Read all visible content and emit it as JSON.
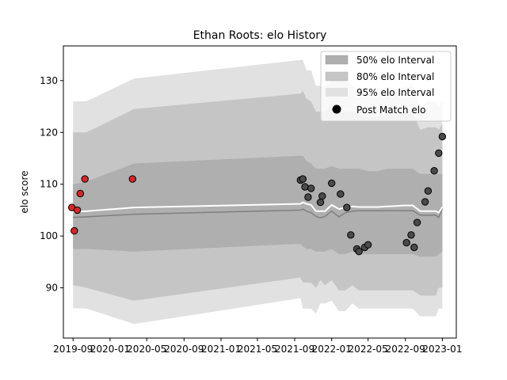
{
  "chart_data": {
    "type": "area",
    "title": "Ethan Roots: elo History",
    "xlabel": "",
    "ylabel": "elo score",
    "x_date_range": [
      "2019-07-31",
      "2023-02-16"
    ],
    "ylim": [
      80.3,
      136.7
    ],
    "grid": false,
    "legend_position": "top-right",
    "x_ticks": [
      "2019-09",
      "2020-01",
      "2020-05",
      "2020-09",
      "2021-01",
      "2021-05",
      "2021-09",
      "2022-01",
      "2022-05",
      "2022-09",
      "2023-01"
    ],
    "x_tick_dates": [
      "2019-09-01",
      "2020-01-01",
      "2020-05-01",
      "2020-09-01",
      "2021-01-01",
      "2021-05-01",
      "2021-09-01",
      "2022-01-01",
      "2022-05-01",
      "2022-09-01",
      "2023-01-01"
    ],
    "y_ticks": [
      90,
      100,
      110,
      120,
      130
    ],
    "legend": [
      {
        "label": "50% elo Interval",
        "color": "#afafaf",
        "kind": "patch"
      },
      {
        "label": "80% elo Interval",
        "color": "#c5c5c5",
        "kind": "patch"
      },
      {
        "label": "95% elo Interval",
        "color": "#e1e1e1",
        "kind": "patch"
      },
      {
        "label": "Post Match elo",
        "color": "#000000",
        "kind": "marker"
      }
    ],
    "x": [
      "2019-09-01",
      "2019-10-15",
      "2020-03-20",
      "2021-09-20",
      "2021-09-28",
      "2021-10-10",
      "2021-10-25",
      "2021-11-10",
      "2021-11-25",
      "2021-12-10",
      "2022-01-01",
      "2022-01-25",
      "2022-02-15",
      "2022-03-10",
      "2022-04-01",
      "2022-05-01",
      "2022-06-01",
      "2022-07-01",
      "2022-08-01",
      "2022-09-01",
      "2022-09-25",
      "2022-10-20",
      "2022-11-15",
      "2022-12-10",
      "2022-12-20",
      "2023-01-01"
    ],
    "series": [
      {
        "name": "95% elo Interval",
        "lower": [
          86.1,
          86.0,
          83.0,
          88.0,
          86.0,
          86.0,
          86.0,
          85.0,
          87.0,
          87.0,
          87.5,
          85.5,
          85.5,
          87.0,
          86.0,
          86.0,
          86.0,
          86.0,
          86.0,
          86.0,
          86.0,
          84.5,
          84.5,
          84.5,
          86.0,
          86.0
        ],
        "upper": [
          126.0,
          126.0,
          130.4,
          134.0,
          134.0,
          132.0,
          132.0,
          129.0,
          129.0,
          129.0,
          130.0,
          130.0,
          130.0,
          129.0,
          128.0,
          127.0,
          127.5,
          128.0,
          128.3,
          128.7,
          129.0,
          125.0,
          126.0,
          126.0,
          125.0,
          126.0
        ]
      },
      {
        "name": "80% elo Interval",
        "lower": [
          90.5,
          90.0,
          87.5,
          92.0,
          91.0,
          91.0,
          91.0,
          90.0,
          91.5,
          90.5,
          91.5,
          89.5,
          89.5,
          90.5,
          89.5,
          89.5,
          89.5,
          89.5,
          89.5,
          89.5,
          89.5,
          88.5,
          88.5,
          88.5,
          90.0,
          90.0
        ],
        "upper": [
          120.0,
          120.0,
          124.5,
          127.5,
          128.0,
          126.5,
          126.0,
          124.0,
          124.0,
          124.0,
          125.0,
          124.0,
          124.0,
          124.0,
          123.5,
          123.0,
          123.0,
          123.5,
          123.5,
          123.7,
          124.0,
          120.5,
          121.0,
          121.0,
          120.5,
          121.5
        ]
      },
      {
        "name": "50% elo Interval",
        "lower": [
          97.5,
          97.5,
          97.0,
          98.5,
          98.0,
          97.5,
          97.5,
          97.0,
          97.0,
          97.0,
          97.5,
          96.5,
          96.5,
          97.0,
          96.5,
          96.5,
          96.5,
          96.5,
          96.5,
          96.5,
          96.5,
          96.0,
          96.0,
          96.0,
          96.5,
          97.0
        ],
        "upper": [
          110.0,
          110.5,
          114.0,
          115.5,
          115.5,
          114.5,
          114.0,
          113.0,
          113.0,
          113.0,
          113.5,
          113.0,
          113.0,
          113.0,
          113.0,
          112.5,
          112.5,
          113.0,
          113.0,
          113.0,
          113.0,
          112.0,
          112.0,
          112.0,
          112.0,
          112.0
        ]
      },
      {
        "name": "",
        "values": [
          103.6,
          103.7,
          104.2,
          105.0,
          105.2,
          104.8,
          104.5,
          103.8,
          103.5,
          103.8,
          104.8,
          103.7,
          104.5,
          104.8,
          104.9,
          104.9,
          104.9,
          104.9,
          104.9,
          104.9,
          104.9,
          104.0,
          104.0,
          104.0,
          103.6,
          105.3
        ]
      },
      {
        "name": "",
        "values": [
          104.7,
          104.8,
          105.5,
          106.2,
          106.5,
          106.2,
          106.0,
          104.8,
          104.8,
          104.8,
          106.0,
          105.2,
          105.5,
          105.7,
          105.6,
          105.6,
          105.6,
          105.7,
          105.8,
          105.9,
          105.9,
          104.8,
          104.8,
          104.8,
          104.5,
          105.6
        ]
      }
    ],
    "points": [
      {
        "x": "2019-08-28",
        "y": 105.5,
        "color": "#d62728"
      },
      {
        "x": "2019-09-05",
        "y": 101.0,
        "color": "#d62728"
      },
      {
        "x": "2019-09-15",
        "y": 105.0,
        "color": "#d62728"
      },
      {
        "x": "2019-09-25",
        "y": 108.2,
        "color": "#d62728"
      },
      {
        "x": "2019-10-10",
        "y": 111.0,
        "color": "#d62728"
      },
      {
        "x": "2020-03-15",
        "y": 111.0,
        "color": "#d62728"
      },
      {
        "x": "2021-09-20",
        "y": 110.8,
        "color": "#4a4a4a"
      },
      {
        "x": "2021-09-28",
        "y": 111.0,
        "color": "#4a4a4a"
      },
      {
        "x": "2021-10-05",
        "y": 109.5,
        "color": "#4a4a4a"
      },
      {
        "x": "2021-10-15",
        "y": 107.5,
        "color": "#4a4a4a"
      },
      {
        "x": "2021-10-25",
        "y": 109.2,
        "color": "#4a4a4a"
      },
      {
        "x": "2021-11-25",
        "y": 106.5,
        "color": "#4a4a4a"
      },
      {
        "x": "2021-12-01",
        "y": 107.7,
        "color": "#4a4a4a"
      },
      {
        "x": "2022-01-01",
        "y": 110.2,
        "color": "#4a4a4a"
      },
      {
        "x": "2022-01-30",
        "y": 108.1,
        "color": "#4a4a4a"
      },
      {
        "x": "2022-02-20",
        "y": 105.5,
        "color": "#4a4a4a"
      },
      {
        "x": "2022-03-05",
        "y": 100.2,
        "color": "#4a4a4a"
      },
      {
        "x": "2022-03-25",
        "y": 97.5,
        "color": "#4a4a4a"
      },
      {
        "x": "2022-04-01",
        "y": 97.0,
        "color": "#4a4a4a"
      },
      {
        "x": "2022-04-20",
        "y": 97.8,
        "color": "#4a4a4a"
      },
      {
        "x": "2022-05-01",
        "y": 98.3,
        "color": "#4a4a4a"
      },
      {
        "x": "2022-09-05",
        "y": 98.7,
        "color": "#4a4a4a"
      },
      {
        "x": "2022-09-20",
        "y": 100.2,
        "color": "#4a4a4a"
      },
      {
        "x": "2022-09-30",
        "y": 97.8,
        "color": "#4a4a4a"
      },
      {
        "x": "2022-10-10",
        "y": 102.6,
        "color": "#4a4a4a"
      },
      {
        "x": "2022-11-05",
        "y": 106.6,
        "color": "#4a4a4a"
      },
      {
        "x": "2022-11-15",
        "y": 108.7,
        "color": "#4a4a4a"
      },
      {
        "x": "2022-12-05",
        "y": 112.6,
        "color": "#4a4a4a"
      },
      {
        "x": "2022-12-20",
        "y": 116.0,
        "color": "#4a4a4a"
      },
      {
        "x": "2023-01-01",
        "y": 119.2,
        "color": "#4a4a4a"
      }
    ],
    "line_colors": {
      "median": "#7f7f7f",
      "mean": "#ffffff"
    }
  }
}
